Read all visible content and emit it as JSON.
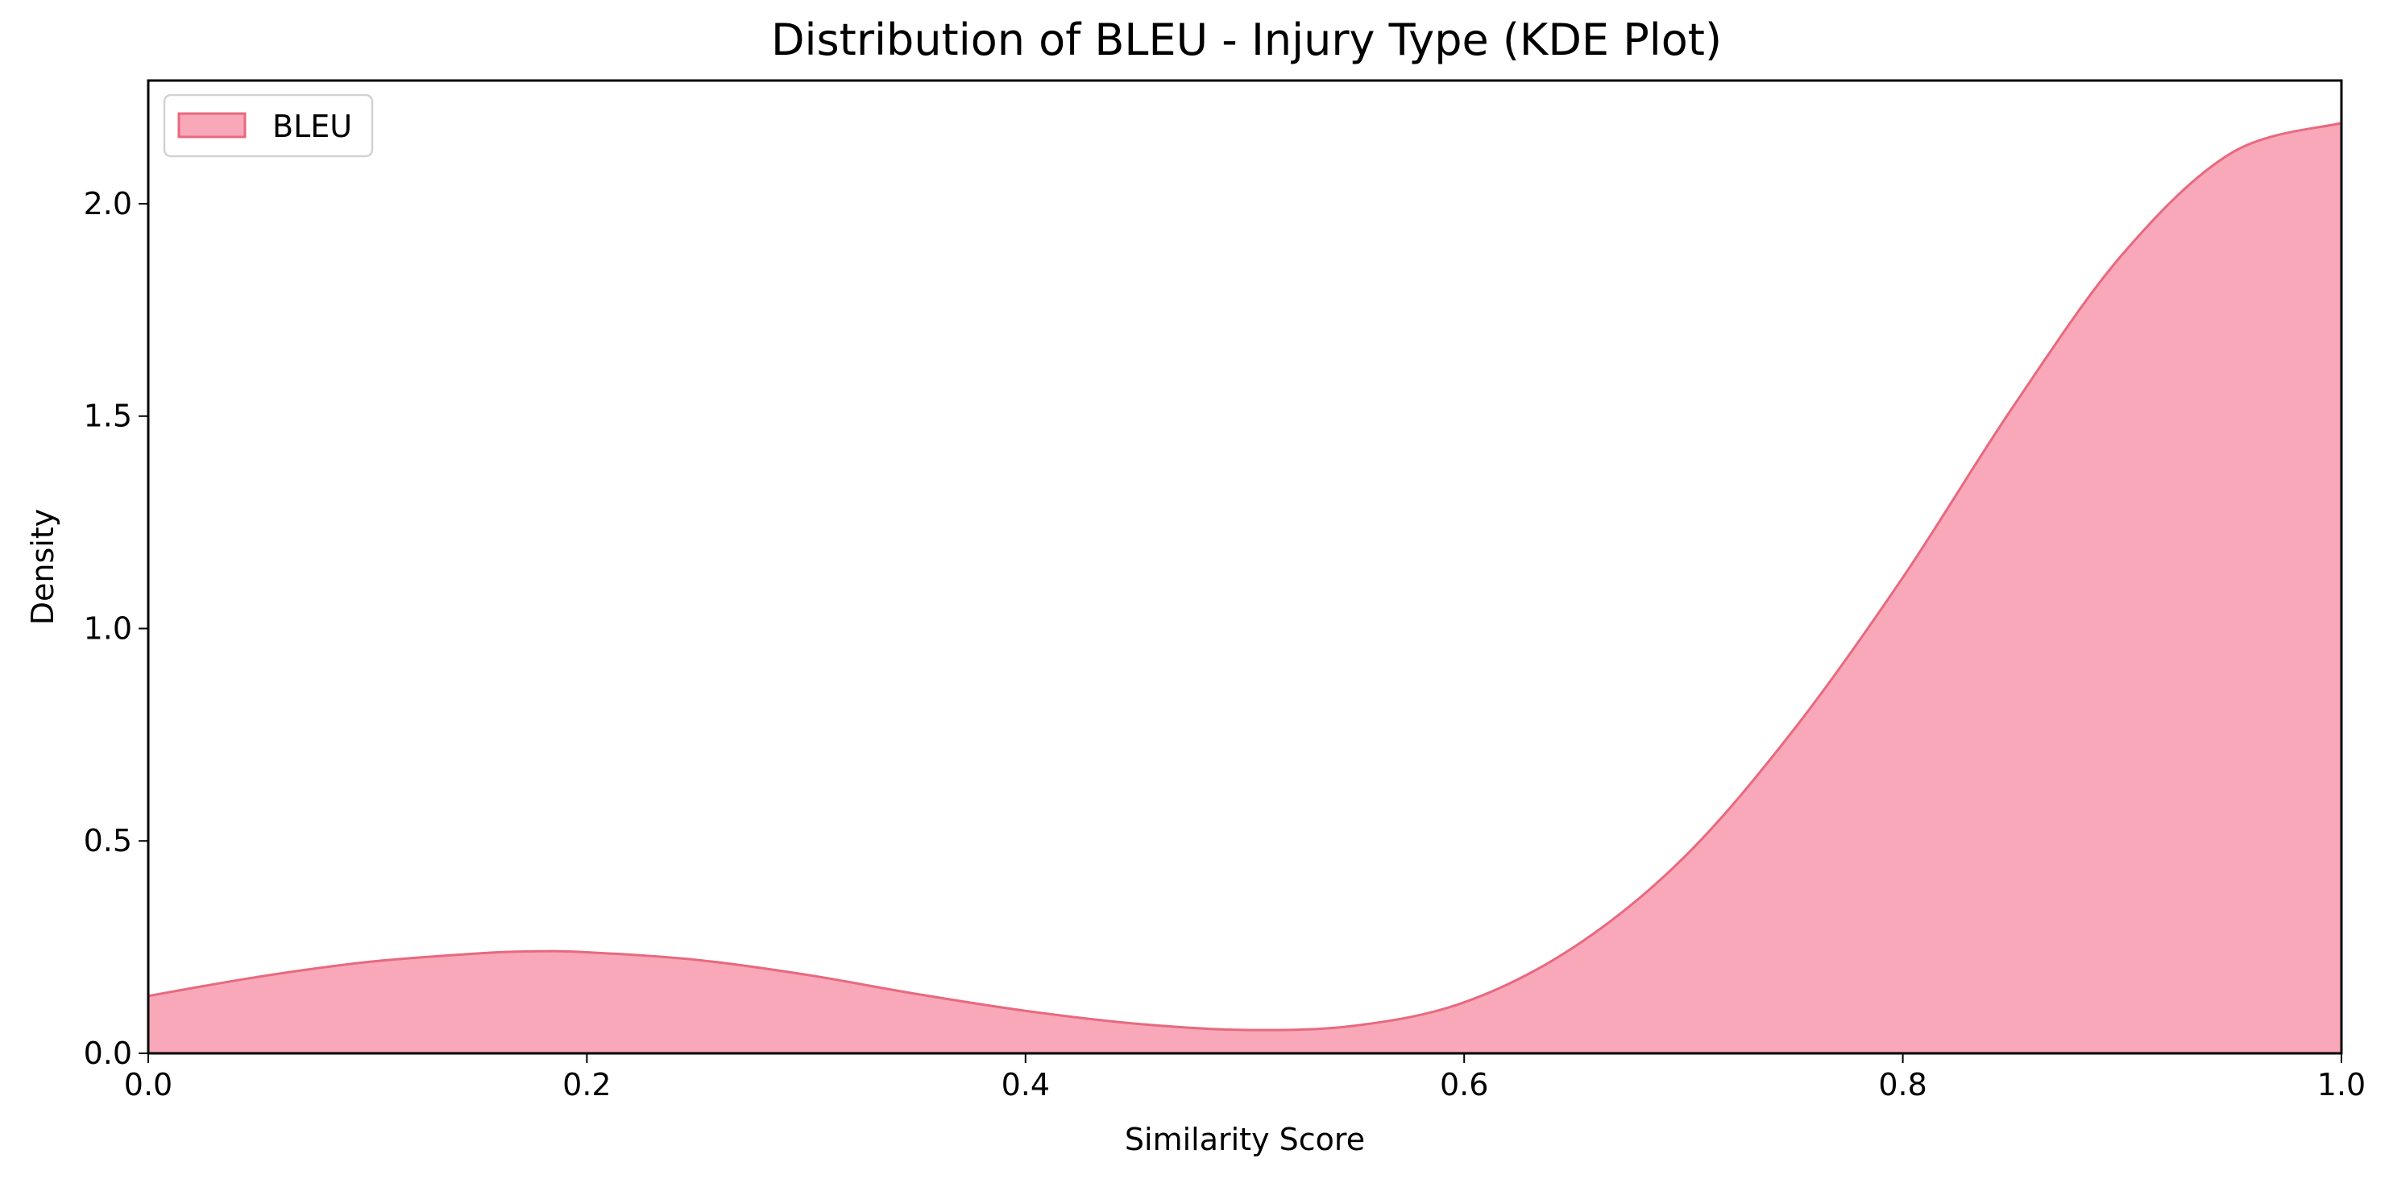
{
  "chart_data": {
    "type": "area",
    "title": "Distribution of BLEU - Injury Type (KDE Plot)",
    "xlabel": "Similarity Score",
    "ylabel": "Density",
    "xlim": [
      0.0,
      1.0
    ],
    "ylim": [
      0.0,
      2.29
    ],
    "xticks": [
      0.0,
      0.2,
      0.4,
      0.6,
      0.8,
      1.0
    ],
    "xtick_labels": [
      "0.0",
      "0.2",
      "0.4",
      "0.6",
      "0.8",
      "1.0"
    ],
    "yticks": [
      0.0,
      0.5,
      1.0,
      1.5,
      2.0
    ],
    "ytick_labels": [
      "0.0",
      "0.5",
      "1.0",
      "1.5",
      "2.0"
    ],
    "grid": false,
    "legend": {
      "position": "top-left",
      "entries": [
        "BLEU"
      ]
    },
    "series": [
      {
        "name": "BLEU",
        "fill_color": "#f8a8b8",
        "line_color": "#e8697f",
        "x": [
          0.0,
          0.05,
          0.1,
          0.15,
          0.175,
          0.2,
          0.25,
          0.3,
          0.35,
          0.4,
          0.45,
          0.5,
          0.55,
          0.6,
          0.65,
          0.7,
          0.75,
          0.8,
          0.85,
          0.9,
          0.95,
          1.0
        ],
        "y": [
          0.135,
          0.18,
          0.215,
          0.235,
          0.24,
          0.238,
          0.22,
          0.185,
          0.14,
          0.1,
          0.07,
          0.055,
          0.065,
          0.12,
          0.25,
          0.46,
          0.76,
          1.12,
          1.52,
          1.88,
          2.12,
          2.19
        ]
      }
    ]
  }
}
